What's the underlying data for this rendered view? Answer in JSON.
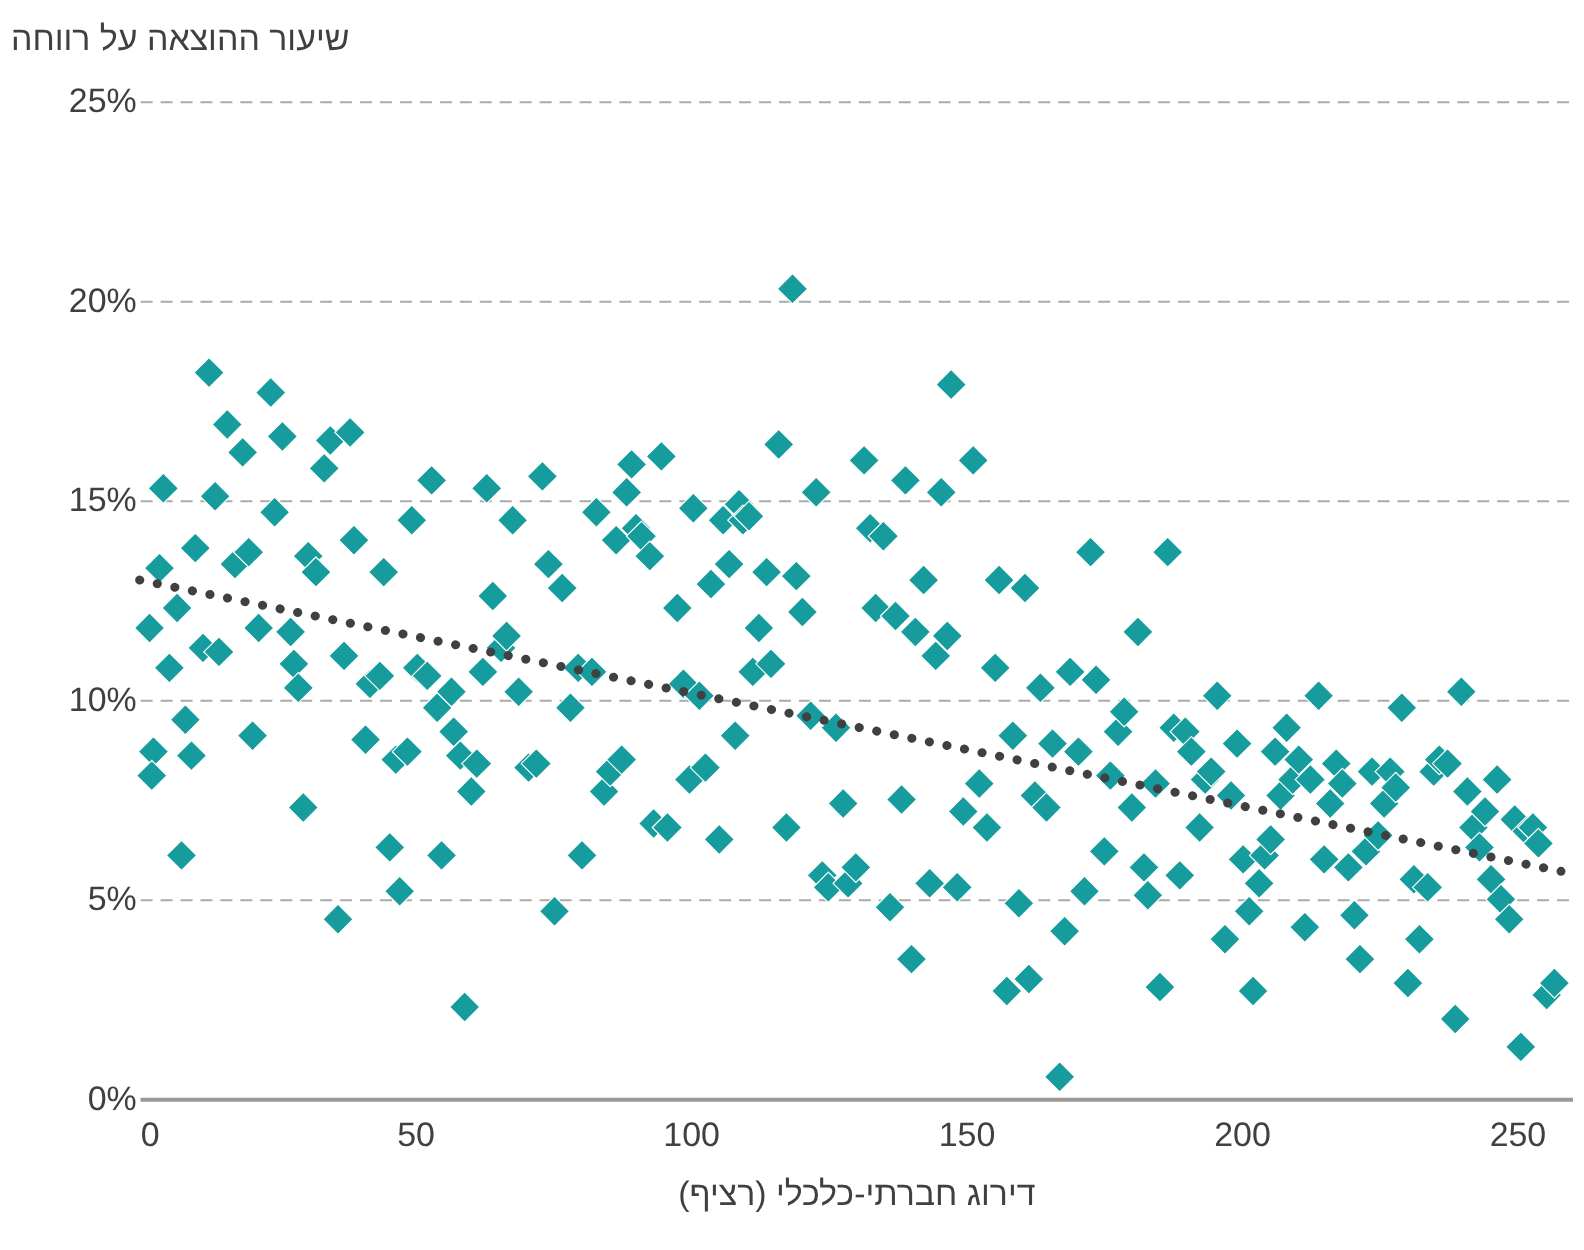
{
  "chart_data": {
    "type": "scatter",
    "xlabel": "דירוג חברתי-כלכלי (רציף)",
    "ylabel": "שיעור ההוצאה על רווחה",
    "xlim": [
      0,
      260
    ],
    "xticks": [
      0,
      50,
      100,
      150,
      200,
      250
    ],
    "ylim": [
      0,
      25
    ],
    "yticks": [
      {
        "value": 0,
        "label": "0%"
      },
      {
        "value": 5,
        "label": "5%"
      },
      {
        "value": 10,
        "label": "10%"
      },
      {
        "value": 15,
        "label": "15%"
      },
      {
        "value": 20,
        "label": "20%"
      },
      {
        "value": 25,
        "label": "25%"
      }
    ],
    "grid": "y",
    "series": [
      {
        "marker": "diamond",
        "color": "#169c9c",
        "x": [
          1.8,
          2.5,
          2.2,
          3.6,
          4.3,
          5.4,
          6.8,
          7.6,
          8.3,
          9.4,
          10.1,
          11.5,
          12.6,
          13.7,
          14.4,
          15.9,
          17.3,
          18.7,
          19.8,
          20.5,
          21.6,
          23.8,
          24.5,
          25.9,
          27.4,
          28,
          28.8,
          29.7,
          30.6,
          32,
          33.5,
          34.6,
          36,
          37.1,
          38.2,
          38.9,
          41,
          41.8,
          43.6,
          44.3,
          45.4,
          46.5,
          47.2,
          48.6,
          49.4,
          50.4,
          52.2,
          53,
          54,
          54.8,
          56.6,
          57,
          58.2,
          59,
          60.2,
          61.2,
          62.3,
          63,
          64.1,
          65.6,
          66.6,
          67.7,
          68.8,
          70.6,
          72,
          73.1,
          74.2,
          75.3,
          76.7,
          78.2,
          79.6,
          80.3,
          82.1,
          82.9,
          84.3,
          85.4,
          86.5,
          87.5,
          88.4,
          89.3,
          90.1,
          91.1,
          92.6,
          93.3,
          94.7,
          95.8,
          97.6,
          98.7,
          99.8,
          100.5,
          101.6,
          102.7,
          103.7,
          105.2,
          105.9,
          107,
          108.1,
          108.8,
          109.5,
          110.6,
          111.3,
          112.4,
          113.8,
          114.6,
          116,
          117.4,
          118.5,
          119.2,
          120.3,
          121.8,
          122.8,
          123.9,
          125,
          126.4,
          127.7,
          128.6,
          130,
          131.5,
          132.6,
          133.6,
          135,
          136.2,
          137.2,
          138.3,
          139,
          140.1,
          140.8,
          142.3,
          143.4,
          144.5,
          145.5,
          146.6,
          147.3,
          148.4,
          149.5,
          151.3,
          152.4,
          153.8,
          155.3,
          156,
          157.4,
          158.5,
          159.6,
          160.7,
          161.4,
          162.5,
          163.5,
          164.6,
          165.7,
          167,
          167.9,
          168.9,
          170.4,
          171.5,
          172.6,
          173.6,
          175.1,
          176.2,
          177.6,
          178.7,
          180.1,
          181.2,
          182.3,
          183,
          184.4,
          185.2,
          186.6,
          187.7,
          188.8,
          189.8,
          190.9,
          192.4,
          193.4,
          194.5,
          195.6,
          197,
          198.1,
          199.2,
          200.3,
          201.4,
          202.1,
          203.2,
          204.2,
          205.3,
          206.1,
          207.1,
          208.2,
          209.3,
          210.4,
          211.5,
          212.5,
          214,
          215,
          216.1,
          217.2,
          218.3,
          219.4,
          220.5,
          221.5,
          222.6,
          223.7,
          224.8,
          225.9,
          227,
          228,
          229.1,
          230.2,
          231.3,
          232.3,
          233.8,
          234.9,
          235.9,
          237.4,
          238.8,
          239.9,
          241,
          242.1,
          243.2,
          244.2,
          245.3,
          246.4,
          247.1,
          248.6,
          249.6,
          250.7,
          251.8,
          252.9,
          253.9,
          255.4,
          256.8
        ],
        "values": [
          11.8,
          8.7,
          8.1,
          13.3,
          15.3,
          10.8,
          12.3,
          6.1,
          9.5,
          8.6,
          13.8,
          11.3,
          18.2,
          15.1,
          11.2,
          16.9,
          13.4,
          16.2,
          13.7,
          9.1,
          11.8,
          17.7,
          14.7,
          16.6,
          11.7,
          10.9,
          10.3,
          7.3,
          13.6,
          13.2,
          15.8,
          16.5,
          4.5,
          11.1,
          16.7,
          14,
          9,
          10.4,
          10.6,
          13.2,
          6.3,
          8.5,
          5.2,
          8.7,
          14.5,
          10.8,
          10.6,
          15.5,
          9.8,
          6.1,
          10.2,
          9.2,
          8.6,
          2.3,
          7.7,
          8.4,
          10.7,
          15.3,
          12.6,
          11.3,
          11.6,
          14.5,
          10.2,
          8.3,
          8.4,
          15.6,
          13.4,
          4.7,
          12.8,
          9.8,
          10.8,
          6.1,
          10.7,
          14.7,
          7.7,
          8.2,
          14,
          8.5,
          15.2,
          15.9,
          14.3,
          14.1,
          13.6,
          6.9,
          16.1,
          6.8,
          12.3,
          10.4,
          8,
          14.8,
          10.1,
          8.3,
          12.9,
          6.5,
          14.5,
          13.4,
          9.1,
          14.9,
          14.5,
          14.6,
          10.7,
          11.8,
          13.2,
          10.9,
          16.4,
          6.8,
          20.3,
          13.1,
          12.2,
          9.6,
          15.2,
          5.6,
          5.3,
          9.3,
          7.4,
          5.4,
          5.8,
          16,
          14.3,
          12.3,
          14.1,
          4.8,
          12.1,
          7.5,
          15.5,
          3.5,
          11.7,
          13,
          5.4,
          11.1,
          15.2,
          11.6,
          17.9,
          5.3,
          7.2,
          16,
          7.9,
          6.8,
          10.8,
          13,
          2.7,
          9.1,
          4.9,
          12.8,
          3,
          7.6,
          10.3,
          7.3,
          8.9,
          0.55,
          4.2,
          10.7,
          8.7,
          5.2,
          13.7,
          10.5,
          6.2,
          8.1,
          9.2,
          9.7,
          7.3,
          11.7,
          5.8,
          5.1,
          7.9,
          2.8,
          13.7,
          9.3,
          5.6,
          9.2,
          8.7,
          6.8,
          8,
          8.2,
          10.1,
          4,
          7.6,
          8.9,
          6,
          4.7,
          2.7,
          5.4,
          6.1,
          6.5,
          8.7,
          7.6,
          9.3,
          8,
          8.5,
          4.3,
          8,
          10.1,
          6,
          7.4,
          8.4,
          7.9,
          5.8,
          4.6,
          3.5,
          6.2,
          8.2,
          6.6,
          7.4,
          8.2,
          7.8,
          9.8,
          2.9,
          5.5,
          4,
          5.3,
          8.2,
          8.5,
          8.4,
          2,
          10.2,
          7.7,
          6.8,
          6.3,
          7.2,
          5.5,
          8,
          5,
          4.5,
          7,
          1.3,
          6.7,
          6.8,
          6.4,
          2.6,
          2.9
        ]
      },
      {
        "type": "line",
        "line_style": "dotted",
        "color": "#404040",
        "x": [
          0,
          258
        ],
        "values": [
          13.0,
          5.7
        ]
      }
    ]
  }
}
